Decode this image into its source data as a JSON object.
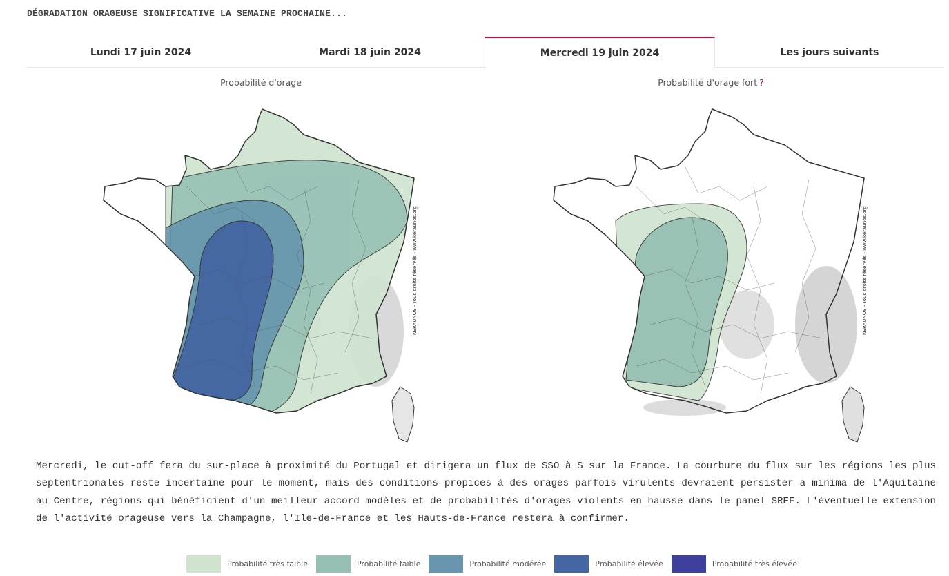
{
  "headline": "DÉGRADATION ORAGEUSE SIGNIFICATIVE LA SEMAINE PROCHAINE...",
  "tabs": [
    {
      "label": "Lundi 17 juin 2024",
      "active": false
    },
    {
      "label": "Mardi 18 juin 2024",
      "active": false
    },
    {
      "label": "Mercredi 19 juin 2024",
      "active": true
    },
    {
      "label": "Les jours suivants",
      "active": false
    }
  ],
  "maps": {
    "left": {
      "title": "Probabilité d'orage",
      "watermark": "KERAUNOS - Tous droits réservés - www.keraunos.org"
    },
    "right": {
      "title": "Probabilité d'orage fort",
      "help": "?",
      "watermark": "KERAUNOS - Tous droits réservés - www.keraunos.org"
    }
  },
  "description": "Mercredi, le cut-off fera du sur-place à proximité du Portugal et dirigera un flux de SSO à S sur la France. La courbure du flux sur les régions les plus septentrionales reste incertaine pour le moment, mais des conditions propices à des orages parfois virulents devraient persister a minima de l'Aquitaine au Centre, régions qui bénéficient d'un meilleur accord modèles et de probabilités d'orages violents en hausse dans le panel SREF. L'éventuelle extension de l'activité orageuse vers la Champagne, l'Ile-de-France et les Hauts-de-France restera à confirmer.",
  "legend": [
    {
      "label": "Probabilité très faible",
      "color": "#cfe3cf"
    },
    {
      "label": "Probabilité faible",
      "color": "#96c0b4"
    },
    {
      "label": "Probabilité modérée",
      "color": "#6896ae"
    },
    {
      "label": "Probabilité élevée",
      "color": "#4466a3"
    },
    {
      "label": "Probabilité très élevée",
      "color": "#3f3f9e"
    }
  ]
}
